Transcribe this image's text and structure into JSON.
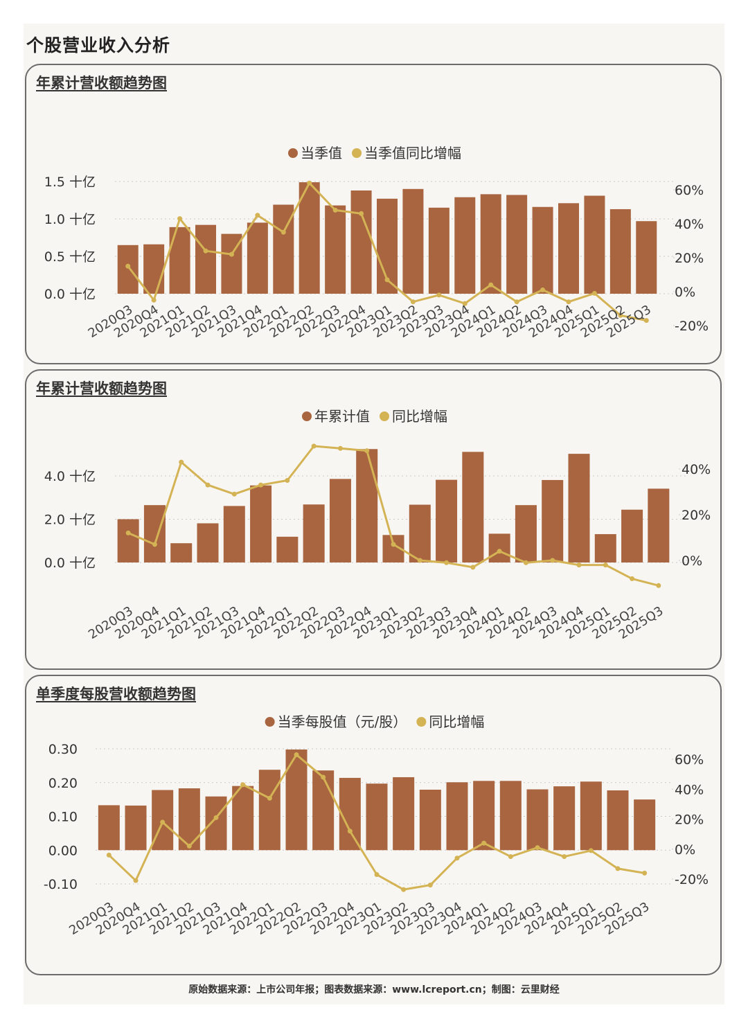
{
  "page_title": "个股营业收入分析",
  "footer": "原始数据来源：上市公司年报；图表数据来源：www.lcreport.cn；制图：云里财经",
  "colors": {
    "bar": "#a86540",
    "line": "#d4b354",
    "grid": "#c9c9c9",
    "axis": "#333333"
  },
  "chart_data": [
    {
      "type": "bar+line",
      "title": "年累计营收额趋势图",
      "legend": [
        "当季值",
        "当季值同比增幅"
      ],
      "categories": [
        "2020Q3",
        "2020Q4",
        "2021Q1",
        "2021Q2",
        "2021Q3",
        "2021Q4",
        "2022Q1",
        "2022Q2",
        "2022Q3",
        "2022Q4",
        "2023Q1",
        "2023Q2",
        "2023Q3",
        "2023Q4",
        "2024Q1",
        "2024Q2",
        "2024Q3",
        "2024Q4",
        "2025Q1",
        "2025Q2",
        "2025Q3"
      ],
      "bar_values": [
        0.65,
        0.66,
        0.89,
        0.92,
        0.8,
        0.95,
        1.19,
        1.49,
        1.18,
        1.38,
        1.27,
        1.4,
        1.15,
        1.29,
        1.33,
        1.32,
        1.16,
        1.21,
        1.31,
        1.13,
        0.97
      ],
      "line_values": [
        15,
        -5,
        43,
        24,
        22,
        45,
        35,
        64,
        48,
        46,
        7,
        -6,
        -2,
        -7,
        4,
        -6,
        1,
        -6,
        -1,
        -14,
        -17
      ],
      "y_left": {
        "min": 0,
        "max": 1.5,
        "ticks": [
          0.0,
          0.5,
          1.0,
          1.5
        ],
        "labels": [
          "0.0 十亿",
          "0.5 十亿",
          "1.0 十亿",
          "1.5 十亿"
        ]
      },
      "y_right": {
        "min": -20,
        "max": 60,
        "ticks": [
          -20,
          0,
          20,
          40,
          60
        ],
        "labels": [
          "-20%",
          "0%",
          "20%",
          "40%",
          "60%"
        ]
      }
    },
    {
      "type": "bar+line",
      "title": "年累计营收额趋势图",
      "legend": [
        "年累计值",
        "同比增幅"
      ],
      "categories": [
        "2020Q3",
        "2020Q4",
        "2021Q1",
        "2021Q2",
        "2021Q3",
        "2021Q4",
        "2022Q1",
        "2022Q2",
        "2022Q3",
        "2022Q4",
        "2023Q1",
        "2023Q2",
        "2023Q3",
        "2023Q4",
        "2024Q1",
        "2024Q2",
        "2024Q3",
        "2024Q4",
        "2025Q1",
        "2025Q2",
        "2025Q3"
      ],
      "bar_values": [
        2.0,
        2.65,
        0.89,
        1.81,
        2.61,
        3.56,
        1.19,
        2.68,
        3.86,
        5.24,
        1.27,
        2.67,
        3.82,
        5.11,
        1.33,
        2.65,
        3.81,
        5.02,
        1.31,
        2.44,
        3.41
      ],
      "line_values": [
        12,
        7,
        43,
        33,
        29,
        33,
        35,
        50,
        49,
        48,
        7,
        0,
        -1,
        -3,
        4,
        -1,
        0,
        -2,
        -2,
        -8,
        -11
      ],
      "y_left": {
        "min": 0,
        "max": 4,
        "ticks": [
          0.0,
          2.0,
          4.0
        ],
        "labels": [
          "0.0 十亿",
          "2.0 十亿",
          "4.0 十亿"
        ]
      },
      "y_right": {
        "min": 0,
        "max": 40,
        "ticks": [
          0,
          20,
          40
        ],
        "labels": [
          "0%",
          "20%",
          "40%"
        ]
      }
    },
    {
      "type": "bar+line",
      "title": "单季度每股营收额趋势图",
      "legend": [
        "当季每股值（元/股）",
        "同比增幅"
      ],
      "categories": [
        "2020Q3",
        "2020Q4",
        "2021Q1",
        "2021Q2",
        "2021Q3",
        "2021Q4",
        "2022Q1",
        "2022Q2",
        "2022Q3",
        "2022Q4",
        "2023Q1",
        "2023Q2",
        "2023Q3",
        "2023Q4",
        "2024Q1",
        "2024Q2",
        "2024Q3",
        "2024Q4",
        "2025Q1",
        "2025Q2",
        "2025Q3"
      ],
      "bar_values": [
        0.133,
        0.132,
        0.178,
        0.183,
        0.159,
        0.19,
        0.238,
        0.298,
        0.236,
        0.214,
        0.197,
        0.216,
        0.179,
        0.201,
        0.205,
        0.205,
        0.18,
        0.189,
        0.203,
        0.177,
        0.15
      ],
      "line_values": [
        -4,
        -21,
        18,
        2,
        21,
        43,
        34,
        63,
        48,
        12,
        -17,
        -27,
        -24,
        -6,
        4,
        -5,
        1,
        -5,
        -1,
        -13,
        -16
      ],
      "y_left": {
        "min": -0.1,
        "max": 0.3,
        "ticks": [
          -0.1,
          0.0,
          0.1,
          0.2,
          0.3
        ],
        "labels": [
          "-0.10",
          "0.00",
          "0.10",
          "0.20",
          "0.30"
        ]
      },
      "y_right": {
        "min": -20,
        "max": 60,
        "ticks": [
          -20,
          0,
          20,
          40,
          60
        ],
        "labels": [
          "-20%",
          "0%",
          "20%",
          "40%",
          "60%"
        ]
      }
    }
  ]
}
